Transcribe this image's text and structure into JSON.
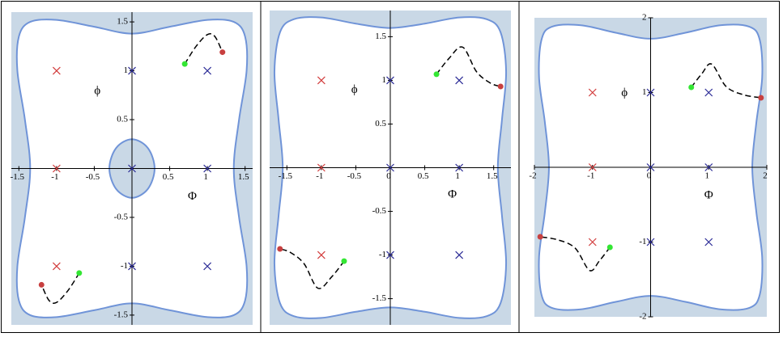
{
  "chart_data": [
    {
      "type": "scatter",
      "xlabel": "Φ",
      "ylabel": "ϕ",
      "xlim": [
        -1.6,
        1.6
      ],
      "ylim": [
        -1.6,
        1.6
      ],
      "xticks": [
        -1.5,
        -1,
        -0.5,
        0.5,
        1,
        1.5
      ],
      "yticks": [
        -1.5,
        -1,
        -0.5,
        0.5,
        1,
        1.5
      ],
      "regions": [
        {
          "fill": "#ffffff",
          "color": "#7094d8",
          "x": [
            0,
            0.5,
            1.0,
            1.35,
            1.5,
            1.52,
            1.42,
            1.35,
            1.42,
            1.52,
            1.5,
            1.35,
            1.0,
            0.5,
            0,
            -0.5,
            -1.0,
            -1.35,
            -1.5,
            -1.52,
            -1.42,
            -1.35,
            -1.42,
            -1.52,
            -1.5,
            -1.35,
            -1.0,
            -0.5
          ],
          "y": [
            1.38,
            1.45,
            1.52,
            1.5,
            1.35,
            1.0,
            0.5,
            0,
            -0.5,
            -1.0,
            -1.35,
            -1.5,
            -1.52,
            -1.45,
            -1.38,
            -1.45,
            -1.52,
            -1.5,
            -1.35,
            -1.0,
            -0.5,
            0,
            0.5,
            1.0,
            1.35,
            1.5,
            1.52,
            1.45
          ]
        },
        {
          "fill": "#c9d8e6",
          "color": "#7094d8",
          "x": [
            0,
            0.21,
            0.3,
            0.21,
            0,
            -0.21,
            -0.3,
            -0.21
          ],
          "y": [
            0.3,
            0.21,
            0,
            -0.21,
            -0.3,
            -0.21,
            0,
            0.21
          ]
        }
      ],
      "curves": [
        {
          "color": "#000000",
          "x": [
            0.7,
            0.85,
            1.0,
            1.1,
            1.2
          ],
          "y": [
            1.07,
            1.25,
            1.37,
            1.35,
            1.19
          ]
        },
        {
          "color": "#000000",
          "x": [
            -0.7,
            -0.85,
            -1.0,
            -1.1,
            -1.2
          ],
          "y": [
            -1.07,
            -1.25,
            -1.37,
            -1.35,
            -1.19
          ]
        }
      ],
      "series": [
        {
          "marker": "x",
          "color": "#d23c3c",
          "x": [
            -1,
            -1,
            -1
          ],
          "y": [
            1,
            0,
            -1
          ]
        },
        {
          "marker": "x",
          "color": "#2b2b96",
          "x": [
            0,
            1,
            0,
            1,
            0,
            1
          ],
          "y": [
            1,
            1,
            0,
            0,
            -1,
            -1
          ]
        },
        {
          "marker": "dot",
          "color": "#33e633",
          "x": [
            0.7,
            -0.7
          ],
          "y": [
            1.07,
            -1.07
          ]
        },
        {
          "marker": "dot",
          "color": "#c84040",
          "x": [
            1.2,
            -1.2
          ],
          "y": [
            1.19,
            -1.19
          ]
        }
      ]
    },
    {
      "type": "scatter",
      "xlabel": "Φ",
      "ylabel": "ϕ",
      "xlim": [
        -1.75,
        1.75
      ],
      "ylim": [
        -1.8,
        1.8
      ],
      "xticks": [
        -1.5,
        -1,
        -0.5,
        0,
        0.5,
        1,
        1.5
      ],
      "yticks": [
        -1.5,
        -1,
        -0.5,
        0.5,
        1,
        1.5
      ],
      "regions": [
        {
          "fill": "#ffffff",
          "color": "#7094d8",
          "x": [
            0,
            0.5,
            1.0,
            1.4,
            1.6,
            1.68,
            1.62,
            1.56,
            1.62,
            1.68,
            1.6,
            1.4,
            1.0,
            0.5,
            0,
            -0.5,
            -1.0,
            -1.4,
            -1.6,
            -1.68,
            -1.62,
            -1.56,
            -1.62,
            -1.68,
            -1.6,
            -1.4,
            -1.0,
            -0.5
          ],
          "y": [
            1.6,
            1.65,
            1.72,
            1.7,
            1.55,
            1.1,
            0.55,
            0,
            -0.55,
            -1.1,
            -1.55,
            -1.7,
            -1.72,
            -1.65,
            -1.6,
            -1.65,
            -1.72,
            -1.7,
            -1.55,
            -1.1,
            -0.55,
            0,
            0.55,
            1.1,
            1.55,
            1.7,
            1.72,
            1.65
          ]
        }
      ],
      "curves": [
        {
          "color": "#000000",
          "x": [
            0.67,
            0.85,
            1.05,
            1.25,
            1.45,
            1.6
          ],
          "y": [
            1.07,
            1.25,
            1.38,
            1.1,
            0.97,
            0.93
          ]
        },
        {
          "color": "#000000",
          "x": [
            -0.67,
            -0.85,
            -1.05,
            -1.25,
            -1.45,
            -1.6
          ],
          "y": [
            -1.07,
            -1.25,
            -1.38,
            -1.1,
            -0.97,
            -0.93
          ]
        }
      ],
      "series": [
        {
          "marker": "x",
          "color": "#d23c3c",
          "x": [
            -1,
            -1,
            -1
          ],
          "y": [
            1,
            0,
            -1
          ]
        },
        {
          "marker": "x",
          "color": "#2b2b96",
          "x": [
            0,
            1,
            0,
            1,
            0,
            1
          ],
          "y": [
            1,
            1,
            0,
            0,
            -1,
            -1
          ]
        },
        {
          "marker": "dot",
          "color": "#33e633",
          "x": [
            0.67,
            -0.67
          ],
          "y": [
            1.07,
            -1.07
          ]
        },
        {
          "marker": "dot",
          "color": "#c84040",
          "x": [
            1.6,
            -1.6
          ],
          "y": [
            0.93,
            -0.93
          ]
        }
      ]
    },
    {
      "type": "scatter",
      "xlabel": "Φ",
      "ylabel": "ϕ",
      "xlim": [
        -2,
        2
      ],
      "ylim": [
        -2,
        2
      ],
      "xticks": [
        -2,
        -1,
        0,
        1,
        2
      ],
      "yticks": [
        -2,
        -1,
        1,
        2
      ],
      "regions": [
        {
          "fill": "#ffffff",
          "color": "#7094d8",
          "x": [
            0,
            0.6,
            1.2,
            1.7,
            1.88,
            1.92,
            1.82,
            1.75,
            1.82,
            1.92,
            1.88,
            1.7,
            1.2,
            0.6,
            0,
            -0.6,
            -1.2,
            -1.7,
            -1.88,
            -1.92,
            -1.82,
            -1.75,
            -1.82,
            -1.92,
            -1.88,
            -1.7,
            -1.2,
            -0.6
          ],
          "y": [
            1.72,
            1.8,
            1.9,
            1.88,
            1.7,
            1.2,
            0.6,
            0,
            -0.6,
            -1.2,
            -1.7,
            -1.88,
            -1.9,
            -1.8,
            -1.72,
            -1.8,
            -1.9,
            -1.88,
            -1.7,
            -1.2,
            -0.6,
            0,
            0.6,
            1.2,
            1.7,
            1.88,
            1.9,
            1.8
          ]
        }
      ],
      "curves": [
        {
          "color": "#000000",
          "x": [
            0.7,
            0.88,
            1.05,
            1.3,
            1.6,
            1.9
          ],
          "y": [
            1.07,
            1.25,
            1.38,
            1.08,
            0.97,
            0.93
          ]
        },
        {
          "color": "#000000",
          "x": [
            -0.7,
            -0.88,
            -1.05,
            -1.3,
            -1.6,
            -1.9
          ],
          "y": [
            -1.07,
            -1.25,
            -1.38,
            -1.08,
            -0.97,
            -0.93
          ]
        }
      ],
      "series": [
        {
          "marker": "x",
          "color": "#d23c3c",
          "x": [
            -1,
            -1,
            -1
          ],
          "y": [
            1,
            0,
            -1
          ]
        },
        {
          "marker": "x",
          "color": "#2b2b96",
          "x": [
            0,
            1,
            0,
            1,
            0,
            1
          ],
          "y": [
            1,
            1,
            0,
            0,
            -1,
            -1
          ]
        },
        {
          "marker": "dot",
          "color": "#33e633",
          "x": [
            0.7,
            -0.7
          ],
          "y": [
            1.07,
            -1.07
          ]
        },
        {
          "marker": "dot",
          "color": "#c84040",
          "x": [
            1.9,
            -1.9
          ],
          "y": [
            0.93,
            -0.93
          ]
        }
      ]
    }
  ]
}
